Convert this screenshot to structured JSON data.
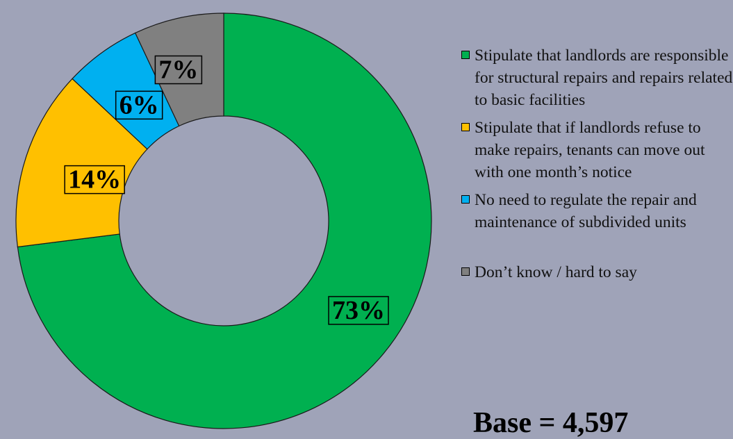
{
  "chart_data": {
    "type": "pie",
    "donut": true,
    "slices": [
      {
        "name": "Stipulate that landlords are responsible for structural repairs and repairs related to basic facilities",
        "value": 73,
        "label": "73%",
        "color": "#00b050"
      },
      {
        "name": "Stipulate that if landlords refuse to make repairs, tenants can move out with one month’s notice",
        "value": 14,
        "label": "14%",
        "color": "#ffc000"
      },
      {
        "name": "No need to regulate the repair and maintenance of subdivided units",
        "value": 6,
        "label": "6%",
        "color": "#00b0f0"
      },
      {
        "name": "Don’t know / hard to say",
        "value": 7,
        "label": "7%",
        "color": "#808080"
      }
    ],
    "legend_position": "right"
  },
  "annotation": "Base = 4,597"
}
